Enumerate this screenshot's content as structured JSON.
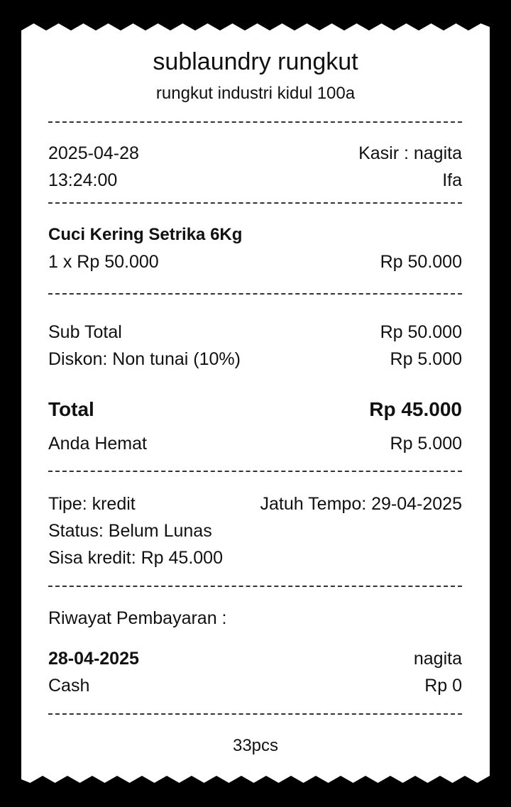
{
  "store": {
    "name": "sublaundry rungkut",
    "address": "rungkut industri kidul 100a"
  },
  "meta": {
    "date": "2025-04-28",
    "time": "13:24:00",
    "cashier": "Kasir : nagita",
    "customer": "Ifa"
  },
  "items": [
    {
      "name": "Cuci Kering Setrika 6Kg",
      "qty_price": "1 x Rp 50.000",
      "amount": "Rp 50.000"
    }
  ],
  "summary": {
    "subtotal_label": "Sub Total",
    "subtotal": "Rp 50.000",
    "discount_label": "Diskon: Non tunai (10%)",
    "discount": "Rp 5.000",
    "total_label": "Total",
    "total": "Rp 45.000",
    "saved_label": "Anda Hemat",
    "saved": "Rp 5.000"
  },
  "payment": {
    "type": "Tipe: kredit",
    "due": "Jatuh Tempo: 29-04-2025",
    "status": "Status: Belum Lunas",
    "remaining": "Sisa kredit: Rp 45.000"
  },
  "history": {
    "title": "Riwayat Pembayaran :",
    "entries": [
      {
        "date": "28-04-2025",
        "by": "nagita",
        "method": "Cash",
        "amount": "Rp 0"
      }
    ]
  },
  "footer": {
    "pieces": "33pcs"
  }
}
